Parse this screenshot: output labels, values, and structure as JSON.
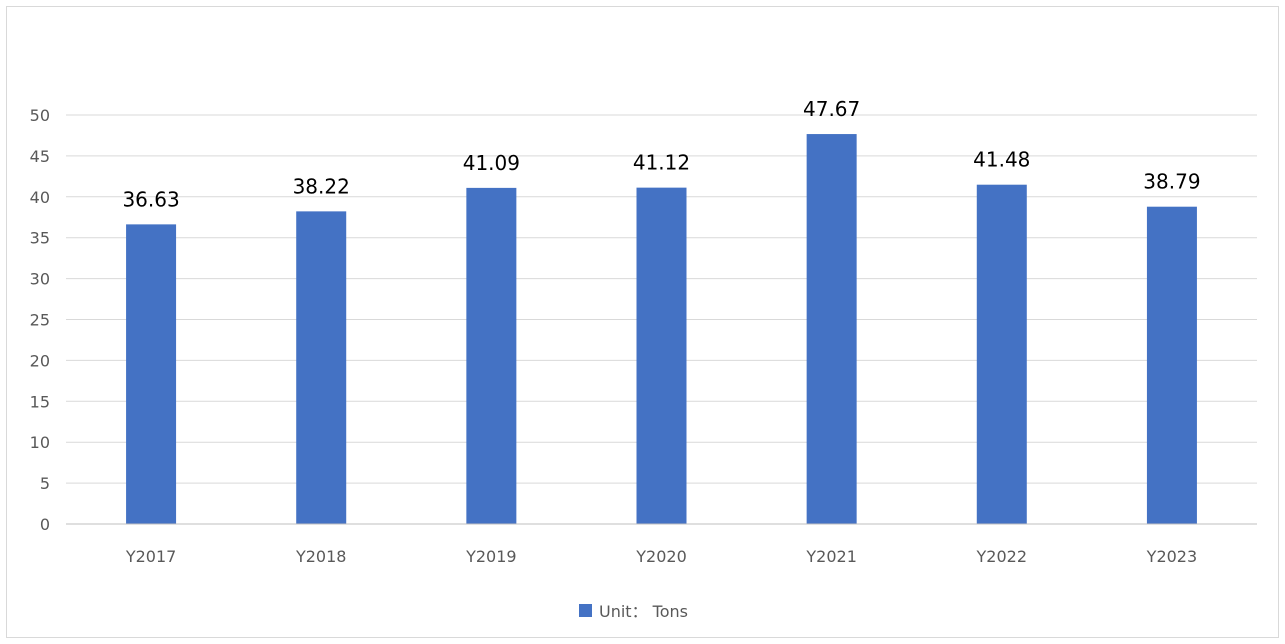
{
  "chart_data": {
    "type": "bar",
    "categories": [
      "Y2017",
      "Y2018",
      "Y2019",
      "Y2020",
      "Y2021",
      "Y2022",
      "Y2023"
    ],
    "series": [
      {
        "name": "Unit： Tons",
        "values": [
          36.63,
          38.22,
          41.09,
          41.12,
          47.67,
          41.48,
          38.79
        ],
        "labels": [
          "36.63",
          "38.22",
          "41.09",
          "41.12",
          "47.67",
          "41.48",
          "38.79"
        ]
      }
    ],
    "title": "",
    "xlabel": "",
    "ylabel": "",
    "ylim": [
      0,
      50
    ],
    "yticks": [
      "0",
      "5",
      "10",
      "15",
      "20",
      "25",
      "30",
      "35",
      "40",
      "45",
      "50"
    ],
    "grid": true,
    "legend": "bottom",
    "colors": {
      "bar": "#4472c4",
      "grid": "#d9d9d9",
      "axis": "#bfbfbf"
    }
  }
}
